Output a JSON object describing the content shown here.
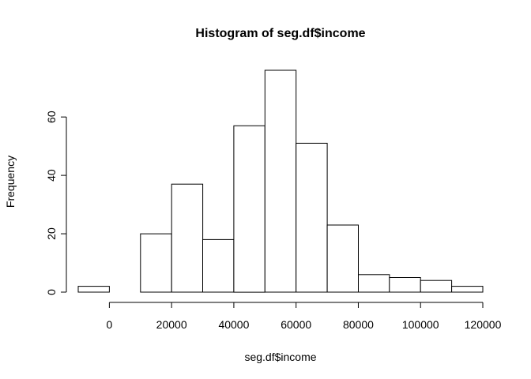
{
  "chart_data": {
    "type": "bar",
    "title": "Histogram of seg.df$income",
    "xlabel": "seg.df$income",
    "ylabel": "Frequency",
    "bin_edges": [
      -10000,
      0,
      10000,
      20000,
      30000,
      40000,
      50000,
      60000,
      70000,
      80000,
      90000,
      100000,
      110000,
      120000
    ],
    "values": [
      2,
      0,
      20,
      37,
      18,
      57,
      76,
      51,
      23,
      6,
      5,
      4,
      2
    ],
    "xlim": [
      -10000,
      120000
    ],
    "ylim": [
      0,
      76
    ],
    "x_ticks": [
      0,
      20000,
      40000,
      60000,
      80000,
      100000,
      120000
    ],
    "x_tick_labels": [
      "0",
      "20000",
      "40000",
      "60000",
      "80000",
      "100000",
      "120000"
    ],
    "y_ticks": [
      0,
      20,
      40,
      60
    ],
    "y_tick_labels": [
      "0",
      "20",
      "40",
      "60"
    ],
    "grid": false,
    "legend": "none"
  }
}
